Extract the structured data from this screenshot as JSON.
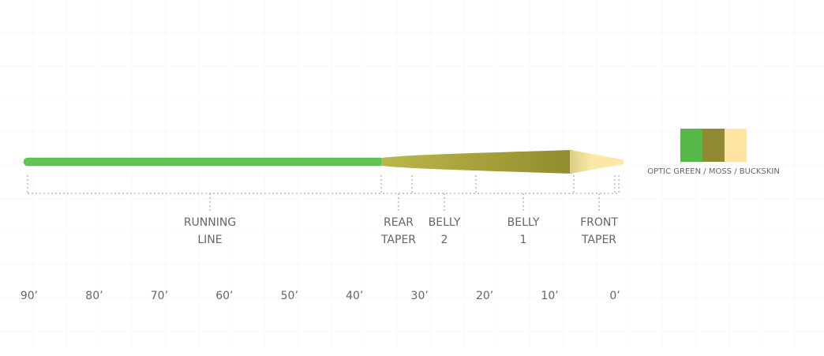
{
  "diagram": {
    "sections": [
      {
        "line1": "RUNNING",
        "line2": "LINE"
      },
      {
        "line1": "REAR",
        "line2": "TAPER"
      },
      {
        "line1": "BELLY",
        "line2": "2"
      },
      {
        "line1": "BELLY",
        "line2": "1"
      },
      {
        "line1": "FRONT",
        "line2": "TAPER"
      }
    ],
    "scale_labels": [
      "90’",
      "80’",
      "70’",
      "60’",
      "50’",
      "40’",
      "30’",
      "20’",
      "10’",
      "0’"
    ],
    "legend": {
      "label": "OPTIC GREEN / MOSS / BUCKSKIN"
    }
  }
}
